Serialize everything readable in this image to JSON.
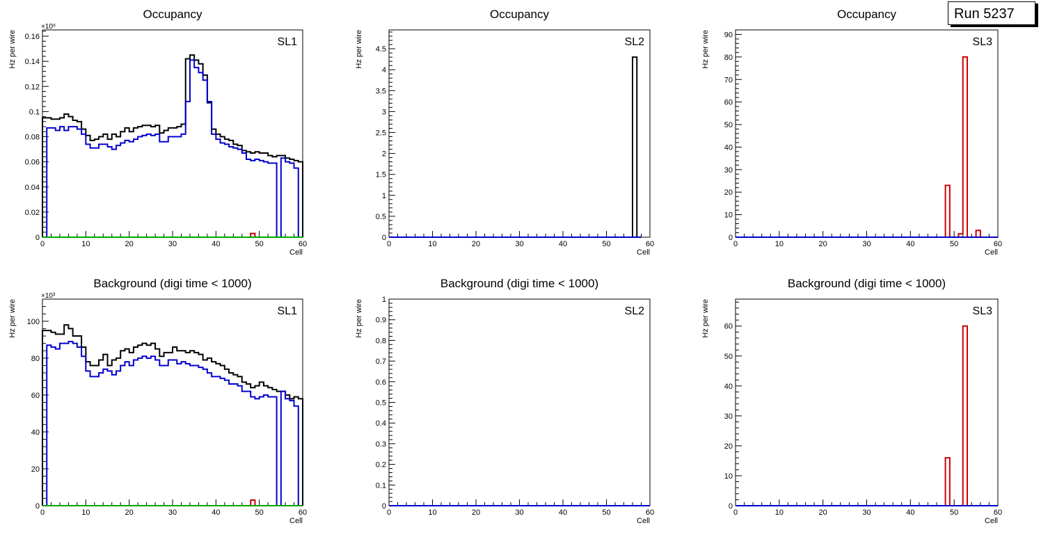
{
  "run_label": "Run 5237",
  "colors": {
    "black": "#000000",
    "blue": "#0000cc",
    "red": "#cc0000",
    "green": "#00aa00"
  },
  "chart_data": [
    {
      "type": "histogram",
      "title": "Occupancy",
      "panel_label": "SL1",
      "xlabel": "Cell",
      "ylabel": "Hz per wire",
      "xlim": [
        0,
        60
      ],
      "ylim": [
        0,
        0.165
      ],
      "yticks": [
        0,
        0.02,
        0.04,
        0.06,
        0.08,
        0.1,
        0.12,
        0.14,
        0.16
      ],
      "xticks": [
        0,
        10,
        20,
        30,
        40,
        50,
        60
      ],
      "exponent_label": "×10⁶",
      "bins": [
        0,
        60
      ],
      "series": [
        {
          "name": "total",
          "color": "#000000",
          "values": [
            0.095,
            0.095,
            0.094,
            0.094,
            0.095,
            0.098,
            0.096,
            0.093,
            0.092,
            0.086,
            0.081,
            0.077,
            0.078,
            0.08,
            0.082,
            0.078,
            0.082,
            0.08,
            0.084,
            0.087,
            0.084,
            0.087,
            0.088,
            0.089,
            0.089,
            0.088,
            0.089,
            0.083,
            0.085,
            0.087,
            0.087,
            0.088,
            0.09,
            0.142,
            0.145,
            0.141,
            0.138,
            0.129,
            0.107,
            0.086,
            0.082,
            0.08,
            0.078,
            0.077,
            0.074,
            0.073,
            0.069,
            0.068,
            0.067,
            0.068,
            0.067,
            0.067,
            0.065,
            0.064,
            0.065,
            0.065,
            0.063,
            0.062,
            0.061,
            0.06
          ]
        },
        {
          "name": "blue",
          "color": "#0000cc",
          "values": [
            0.0,
            0.087,
            0.087,
            0.085,
            0.088,
            0.085,
            0.088,
            0.088,
            0.086,
            0.082,
            0.074,
            0.071,
            0.071,
            0.074,
            0.074,
            0.072,
            0.07,
            0.073,
            0.075,
            0.077,
            0.076,
            0.078,
            0.08,
            0.081,
            0.082,
            0.081,
            0.082,
            0.076,
            0.076,
            0.08,
            0.08,
            0.08,
            0.082,
            0.108,
            0.141,
            0.135,
            0.131,
            0.125,
            0.108,
            0.082,
            0.078,
            0.075,
            0.074,
            0.072,
            0.071,
            0.07,
            0.067,
            0.062,
            0.061,
            0.062,
            0.061,
            0.06,
            0.059,
            0.059,
            0.0,
            0.063,
            0.06,
            0.059,
            0.055,
            0.0
          ]
        },
        {
          "name": "red",
          "color": "#cc0000",
          "values": [
            0,
            0,
            0,
            0,
            0,
            0,
            0,
            0,
            0,
            0,
            0,
            0,
            0,
            0,
            0,
            0,
            0,
            0,
            0,
            0,
            0,
            0,
            0,
            0,
            0,
            0,
            0,
            0,
            0,
            0,
            0,
            0,
            0,
            0,
            0,
            0,
            0,
            0,
            0,
            0,
            0,
            0,
            0,
            0,
            0,
            0,
            0,
            0,
            0.003,
            0,
            0,
            0,
            0,
            0,
            0,
            0,
            0,
            0,
            0,
            0
          ]
        },
        {
          "name": "green",
          "color": "#00aa00",
          "values": [
            0,
            0,
            0,
            0,
            0,
            0,
            0,
            0,
            0,
            0,
            0,
            0,
            0,
            0,
            0,
            0,
            0,
            0,
            0,
            0,
            0,
            0,
            0,
            0,
            0,
            0,
            0,
            0,
            0,
            0,
            0,
            0,
            0,
            0,
            0,
            0,
            0,
            0,
            0,
            0,
            0,
            0,
            0,
            0,
            0,
            0,
            0,
            0,
            0,
            0,
            0,
            0,
            0,
            0,
            0,
            0,
            0,
            0,
            0,
            0
          ]
        }
      ]
    },
    {
      "type": "histogram",
      "title": "Occupancy",
      "panel_label": "SL2",
      "xlabel": "Cell",
      "ylabel": "Hz per wire",
      "xlim": [
        0,
        60
      ],
      "ylim": [
        0,
        4.95
      ],
      "yticks": [
        0,
        0.5,
        1,
        1.5,
        2,
        2.5,
        3,
        3.5,
        4,
        4.5
      ],
      "xticks": [
        0,
        10,
        20,
        30,
        40,
        50,
        60
      ],
      "bins": [
        0,
        58
      ],
      "series": [
        {
          "name": "total",
          "color": "#000000",
          "values": [
            0,
            0,
            0,
            0,
            0,
            0,
            0,
            0,
            0,
            0,
            0,
            0,
            0,
            0,
            0,
            0,
            0,
            0,
            0,
            0,
            0,
            0,
            0,
            0,
            0,
            0,
            0,
            0,
            0,
            0,
            0,
            0,
            0,
            0,
            0,
            0,
            0,
            0,
            0,
            0,
            0,
            0,
            0,
            0,
            0,
            0,
            0,
            0,
            0,
            0,
            0,
            0,
            0,
            0,
            0,
            0,
            4.3,
            0
          ]
        },
        {
          "name": "blue",
          "color": "#0000cc",
          "values": [
            0,
            0,
            0,
            0,
            0,
            0,
            0,
            0,
            0,
            0,
            0,
            0,
            0,
            0,
            0,
            0,
            0,
            0,
            0,
            0,
            0,
            0,
            0,
            0,
            0,
            0,
            0,
            0,
            0,
            0,
            0,
            0,
            0,
            0,
            0,
            0,
            0,
            0,
            0,
            0,
            0,
            0,
            0,
            0,
            0,
            0,
            0,
            0,
            0,
            0,
            0,
            0,
            0,
            0,
            0,
            0,
            0,
            0
          ]
        }
      ]
    },
    {
      "type": "histogram",
      "title": "Occupancy",
      "panel_label": "SL3",
      "xlabel": "Cell",
      "ylabel": "Hz per wire",
      "xlim": [
        0,
        60
      ],
      "ylim": [
        0,
        92
      ],
      "yticks": [
        0,
        10,
        20,
        30,
        40,
        50,
        60,
        70,
        80,
        90
      ],
      "xticks": [
        0,
        10,
        20,
        30,
        40,
        50,
        60
      ],
      "bins": [
        0,
        60
      ],
      "series": [
        {
          "name": "red",
          "color": "#cc0000",
          "values": [
            0,
            0,
            0,
            0,
            0,
            0,
            0,
            0,
            0,
            0,
            0,
            0,
            0,
            0,
            0,
            0,
            0,
            0,
            0,
            0,
            0,
            0,
            0,
            0,
            0,
            0,
            0,
            0,
            0,
            0,
            0,
            0,
            0,
            0,
            0,
            0,
            0,
            0,
            0,
            0,
            0,
            0,
            0,
            0,
            0,
            0,
            0,
            0,
            23,
            0,
            0,
            1.5,
            80,
            0,
            0,
            3,
            0,
            0,
            0,
            0
          ]
        },
        {
          "name": "blue",
          "color": "#0000cc",
          "values": [
            0,
            0,
            0,
            0,
            0,
            0,
            0,
            0,
            0,
            0,
            0,
            0,
            0,
            0,
            0,
            0,
            0,
            0,
            0,
            0,
            0,
            0,
            0,
            0,
            0,
            0,
            0,
            0,
            0,
            0,
            0,
            0,
            0,
            0,
            0,
            0,
            0,
            0,
            0,
            0,
            0,
            0,
            0,
            0,
            0,
            0,
            0,
            0,
            0,
            0,
            0,
            0,
            0,
            0,
            0,
            0,
            0,
            0,
            0,
            0
          ]
        }
      ]
    },
    {
      "type": "histogram",
      "title": "Background (digi time < 1000)",
      "panel_label": "SL1",
      "xlabel": "Cell",
      "ylabel": "Hz per wire",
      "xlim": [
        0,
        60
      ],
      "ylim": [
        0,
        112
      ],
      "yticks": [
        0,
        20,
        40,
        60,
        80,
        100
      ],
      "xticks": [
        0,
        10,
        20,
        30,
        40,
        50,
        60
      ],
      "exponent_label": "×10³",
      "bins": [
        0,
        60
      ],
      "series": [
        {
          "name": "total",
          "color": "#000000",
          "values": [
            95,
            95,
            94,
            93,
            93,
            98,
            96,
            92,
            92,
            86,
            78,
            76,
            76,
            79,
            82,
            76,
            79,
            80,
            84,
            85,
            83,
            86,
            87,
            88,
            87,
            88,
            85,
            81,
            83,
            83,
            86,
            84,
            84,
            83,
            84,
            83,
            82,
            79,
            80,
            78,
            77,
            76,
            74,
            72,
            71,
            70,
            67,
            66,
            64,
            65,
            67,
            65,
            64,
            63,
            62,
            62,
            60,
            58,
            59,
            58
          ]
        },
        {
          "name": "blue",
          "color": "#0000cc",
          "values": [
            0,
            87,
            86,
            85,
            88,
            88,
            89,
            88,
            86,
            81,
            73,
            70,
            70,
            72,
            74,
            73,
            71,
            73,
            76,
            78,
            76,
            79,
            80,
            81,
            80,
            81,
            79,
            76,
            76,
            79,
            79,
            77,
            78,
            77,
            76,
            76,
            75,
            74,
            72,
            70,
            70,
            69,
            68,
            66,
            66,
            65,
            62,
            62,
            59,
            58,
            59,
            60,
            59,
            59,
            0,
            62,
            58,
            57,
            54,
            0
          ]
        },
        {
          "name": "red",
          "color": "#cc0000",
          "values": [
            0,
            0,
            0,
            0,
            0,
            0,
            0,
            0,
            0,
            0,
            0,
            0,
            0,
            0,
            0,
            0,
            0,
            0,
            0,
            0,
            0,
            0,
            0,
            0,
            0,
            0,
            0,
            0,
            0,
            0,
            0,
            0,
            0,
            0,
            0,
            0,
            0,
            0,
            0,
            0,
            0,
            0,
            0,
            0,
            0,
            0,
            0,
            0,
            3,
            0,
            0,
            0,
            0,
            0,
            0,
            0,
            0,
            0,
            0,
            0
          ]
        },
        {
          "name": "green",
          "color": "#00aa00",
          "values": [
            0,
            0,
            0,
            0,
            0,
            0,
            0,
            0,
            0,
            0,
            0,
            0,
            0,
            0,
            0,
            0,
            0,
            0,
            0,
            0,
            0,
            0,
            0,
            0,
            0,
            0,
            0,
            0,
            0,
            0,
            0,
            0,
            0,
            0,
            0,
            0,
            0,
            0,
            0,
            0,
            0,
            0,
            0,
            0,
            0,
            0,
            0,
            0,
            0,
            0,
            0,
            0,
            0,
            0,
            0,
            0,
            0,
            0,
            0,
            0
          ]
        }
      ]
    },
    {
      "type": "histogram",
      "title": "Background (digi time < 1000)",
      "panel_label": "SL2",
      "xlabel": "Cell",
      "ylabel": "Hz per wire",
      "xlim": [
        0,
        60
      ],
      "ylim": [
        0,
        1
      ],
      "yticks": [
        0,
        0.1,
        0.2,
        0.3,
        0.4,
        0.5,
        0.6,
        0.7,
        0.8,
        0.9,
        1
      ],
      "xticks": [
        0,
        10,
        20,
        30,
        40,
        50,
        60
      ],
      "bins": [
        0,
        60
      ],
      "series": [
        {
          "name": "blue",
          "color": "#0000cc",
          "values": [
            0,
            0,
            0,
            0,
            0,
            0,
            0,
            0,
            0,
            0,
            0,
            0,
            0,
            0,
            0,
            0,
            0,
            0,
            0,
            0,
            0,
            0,
            0,
            0,
            0,
            0,
            0,
            0,
            0,
            0,
            0,
            0,
            0,
            0,
            0,
            0,
            0,
            0,
            0,
            0,
            0,
            0,
            0,
            0,
            0,
            0,
            0,
            0,
            0,
            0,
            0,
            0,
            0,
            0,
            0,
            0,
            0,
            0,
            0,
            0
          ]
        }
      ]
    },
    {
      "type": "histogram",
      "title": "Background (digi time < 1000)",
      "panel_label": "SL3",
      "xlabel": "Cell",
      "ylabel": "Hz per wire",
      "xlim": [
        0,
        60
      ],
      "ylim": [
        0,
        69
      ],
      "yticks": [
        0,
        10,
        20,
        30,
        40,
        50,
        60
      ],
      "xticks": [
        0,
        10,
        20,
        30,
        40,
        50,
        60
      ],
      "bins": [
        0,
        60
      ],
      "series": [
        {
          "name": "red",
          "color": "#cc0000",
          "values": [
            0,
            0,
            0,
            0,
            0,
            0,
            0,
            0,
            0,
            0,
            0,
            0,
            0,
            0,
            0,
            0,
            0,
            0,
            0,
            0,
            0,
            0,
            0,
            0,
            0,
            0,
            0,
            0,
            0,
            0,
            0,
            0,
            0,
            0,
            0,
            0,
            0,
            0,
            0,
            0,
            0,
            0,
            0,
            0,
            0,
            0,
            0,
            0,
            16,
            0,
            0,
            0,
            60,
            0,
            0,
            0,
            0,
            0,
            0,
            0
          ]
        },
        {
          "name": "blue",
          "color": "#0000cc",
          "values": [
            0,
            0,
            0,
            0,
            0,
            0,
            0,
            0,
            0,
            0,
            0,
            0,
            0,
            0,
            0,
            0,
            0,
            0,
            0,
            0,
            0,
            0,
            0,
            0,
            0,
            0,
            0,
            0,
            0,
            0,
            0,
            0,
            0,
            0,
            0,
            0,
            0,
            0,
            0,
            0,
            0,
            0,
            0,
            0,
            0,
            0,
            0,
            0,
            0,
            0,
            0,
            0,
            0,
            0,
            0,
            0,
            0,
            0,
            0,
            0
          ]
        }
      ]
    }
  ]
}
